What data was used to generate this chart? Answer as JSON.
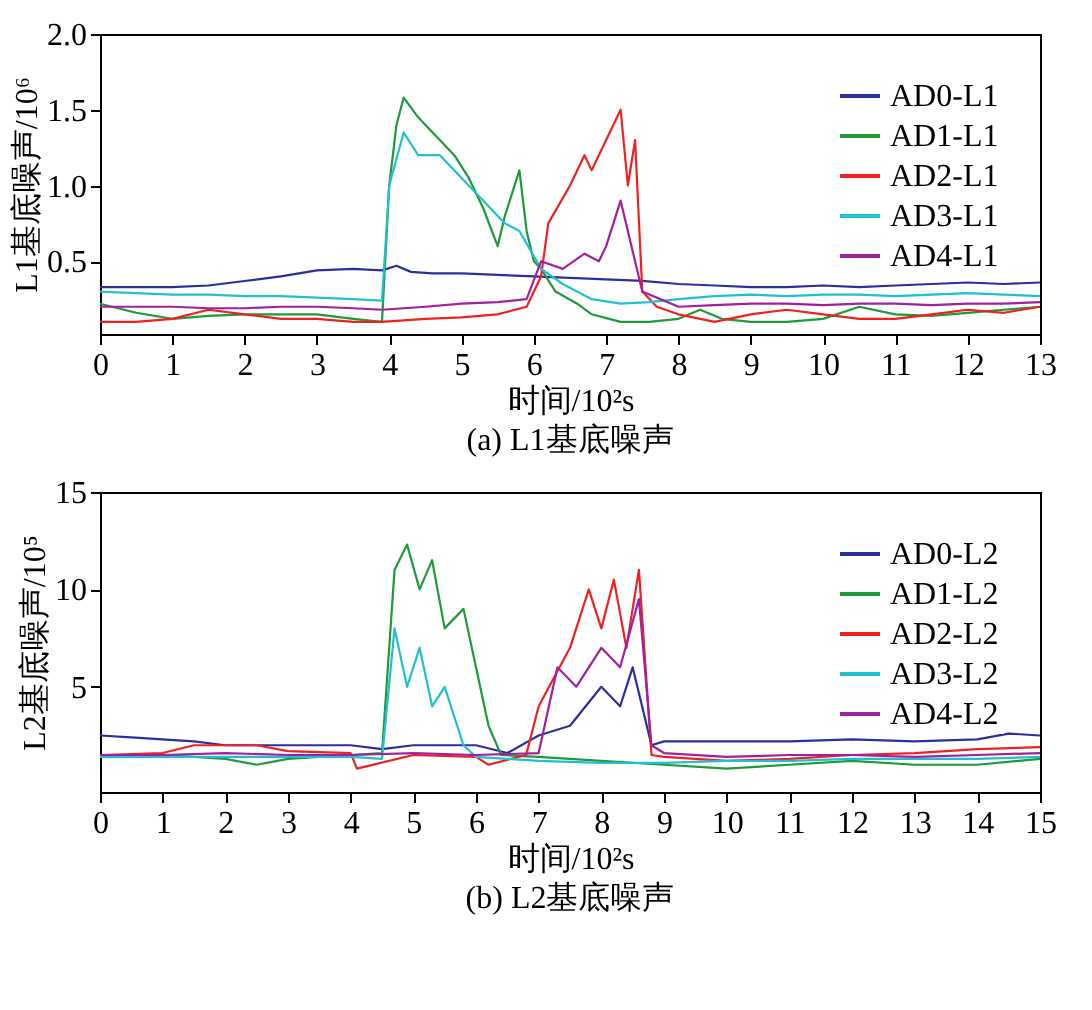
{
  "chart_data": [
    {
      "type": "line",
      "title": "(a) L1基底噪声",
      "xlabel": "时间/10²s",
      "ylabel": "L1基底噪声/10⁶",
      "xlim": [
        0,
        13
      ],
      "xticks": [
        0,
        1,
        2,
        3,
        4,
        5,
        6,
        7,
        8,
        9,
        10,
        11,
        12,
        13
      ],
      "ylim": [
        0.02,
        2.0
      ],
      "yticks": [
        {
          "value": 0.5,
          "label": "0.5"
        },
        {
          "value": 1,
          "label": "1.0"
        },
        {
          "value": 1.5,
          "label": "1.5"
        },
        {
          "value": 2,
          "label": "2.0"
        }
      ],
      "legend": "top right",
      "grid": false,
      "line_style": "solid",
      "marker": "none",
      "series": [
        {
          "name": "AD0-L1",
          "color": "#2b2f9e",
          "x": [
            0,
            0.5,
            1,
            1.5,
            2,
            2.5,
            3,
            3.5,
            3.9,
            4.1,
            4.3,
            4.6,
            5,
            5.5,
            6,
            6.5,
            7,
            7.5,
            8,
            8.5,
            9,
            9.5,
            10,
            10.5,
            11,
            11.5,
            12,
            12.5,
            13
          ],
          "values": [
            0.33,
            0.33,
            0.33,
            0.34,
            0.37,
            0.4,
            0.44,
            0.45,
            0.44,
            0.47,
            0.43,
            0.42,
            0.42,
            0.41,
            0.4,
            0.39,
            0.38,
            0.37,
            0.35,
            0.34,
            0.33,
            0.33,
            0.34,
            0.33,
            0.34,
            0.35,
            0.36,
            0.35,
            0.36
          ]
        },
        {
          "name": "AD1-L1",
          "color": "#1e9a3a",
          "x": [
            0,
            0.5,
            1,
            1.5,
            2,
            2.5,
            3,
            3.5,
            3.9,
            4.0,
            4.1,
            4.2,
            4.4,
            4.6,
            4.9,
            5.1,
            5.3,
            5.5,
            5.6,
            5.8,
            5.9,
            6.0,
            6.1,
            6.3,
            6.6,
            6.8,
            7.2,
            7.6,
            8,
            8.3,
            8.6,
            9,
            9.5,
            10,
            10.5,
            11,
            11.5,
            12,
            12.5,
            13
          ],
          "values": [
            0.22,
            0.16,
            0.12,
            0.14,
            0.15,
            0.15,
            0.15,
            0.12,
            0.1,
            1.0,
            1.4,
            1.58,
            1.45,
            1.35,
            1.2,
            1.05,
            0.85,
            0.6,
            0.8,
            1.1,
            0.7,
            0.5,
            0.45,
            0.3,
            0.22,
            0.15,
            0.1,
            0.1,
            0.12,
            0.18,
            0.12,
            0.1,
            0.1,
            0.12,
            0.2,
            0.15,
            0.14,
            0.16,
            0.18,
            0.2
          ]
        },
        {
          "name": "AD2-L1",
          "color": "#f02020",
          "x": [
            0,
            0.5,
            1,
            1.5,
            2,
            2.5,
            3,
            3.5,
            3.9,
            4.5,
            5,
            5.5,
            5.9,
            6.1,
            6.2,
            6.5,
            6.7,
            6.8,
            7.0,
            7.2,
            7.3,
            7.4,
            7.5,
            7.7,
            8,
            8.5,
            9,
            9.5,
            10,
            10.5,
            11,
            11.5,
            12,
            12.5,
            13
          ],
          "values": [
            0.1,
            0.1,
            0.12,
            0.18,
            0.15,
            0.12,
            0.12,
            0.1,
            0.1,
            0.12,
            0.13,
            0.15,
            0.2,
            0.4,
            0.75,
            1.0,
            1.2,
            1.1,
            1.3,
            1.5,
            1.0,
            1.3,
            0.3,
            0.2,
            0.15,
            0.1,
            0.15,
            0.18,
            0.15,
            0.12,
            0.12,
            0.15,
            0.18,
            0.16,
            0.2
          ]
        },
        {
          "name": "AD3-L1",
          "color": "#20c0d0",
          "x": [
            0,
            0.5,
            1,
            1.5,
            2,
            2.5,
            3,
            3.5,
            3.9,
            4.0,
            4.2,
            4.4,
            4.7,
            5.0,
            5.3,
            5.6,
            5.8,
            6.1,
            6.4,
            6.8,
            7.2,
            7.6,
            8,
            8.5,
            9,
            9.5,
            10,
            10.5,
            11,
            11.5,
            12,
            12.5,
            13
          ],
          "values": [
            0.3,
            0.29,
            0.28,
            0.28,
            0.27,
            0.27,
            0.26,
            0.25,
            0.24,
            1.0,
            1.35,
            1.2,
            1.2,
            1.05,
            0.9,
            0.75,
            0.7,
            0.45,
            0.35,
            0.25,
            0.22,
            0.23,
            0.25,
            0.27,
            0.28,
            0.27,
            0.28,
            0.28,
            0.27,
            0.28,
            0.29,
            0.28,
            0.27
          ]
        },
        {
          "name": "AD4-L1",
          "color": "#a020a0",
          "x": [
            0,
            0.5,
            1,
            1.5,
            2,
            2.5,
            3,
            3.5,
            3.9,
            4.5,
            5,
            5.5,
            5.9,
            6.1,
            6.4,
            6.7,
            6.9,
            7.0,
            7.2,
            7.4,
            7.5,
            8,
            8.5,
            9,
            9.5,
            10,
            10.5,
            11,
            11.5,
            12,
            12.5,
            13
          ],
          "values": [
            0.2,
            0.2,
            0.2,
            0.19,
            0.19,
            0.2,
            0.2,
            0.19,
            0.18,
            0.2,
            0.22,
            0.23,
            0.25,
            0.5,
            0.45,
            0.55,
            0.5,
            0.6,
            0.9,
            0.5,
            0.3,
            0.2,
            0.21,
            0.22,
            0.22,
            0.21,
            0.22,
            0.22,
            0.21,
            0.22,
            0.22,
            0.23
          ]
        }
      ]
    },
    {
      "type": "line",
      "title": "(b) L2基底噪声",
      "xlabel": "时间/10²s",
      "ylabel": "L2基底噪声/10⁵",
      "xlim": [
        0,
        15
      ],
      "xticks": [
        0,
        1,
        2,
        3,
        4,
        5,
        6,
        7,
        8,
        9,
        10,
        11,
        12,
        13,
        14,
        15
      ],
      "ylim": [
        -0.4,
        15
      ],
      "yticks": [
        5,
        10,
        15
      ],
      "legend": "top right",
      "grid": false,
      "line_style": "solid",
      "marker": "none",
      "series": [
        {
          "name": "AD0-L2",
          "color": "#2b2f9e",
          "x": [
            0,
            0.5,
            1,
            1.5,
            2,
            3,
            4,
            4.5,
            5,
            5.5,
            6,
            6.5,
            7,
            7.5,
            8,
            8.3,
            8.5,
            8.8,
            9,
            10,
            11,
            12,
            13,
            14,
            14.5,
            15
          ],
          "values": [
            2.5,
            2.4,
            2.3,
            2.2,
            2.0,
            2.0,
            2.0,
            1.8,
            2.0,
            2.0,
            2.0,
            1.6,
            2.5,
            3,
            5,
            4,
            6,
            2,
            2.2,
            2.2,
            2.2,
            2.3,
            2.2,
            2.3,
            2.6,
            2.5
          ]
        },
        {
          "name": "AD1-L2",
          "color": "#1e9a3a",
          "x": [
            0,
            1,
            2,
            2.5,
            3,
            4,
            4.5,
            4.7,
            4.9,
            5.1,
            5.3,
            5.5,
            5.8,
            6.0,
            6.2,
            6.4,
            7,
            8,
            9,
            10,
            11,
            12,
            13,
            14,
            15
          ],
          "values": [
            1.5,
            1.5,
            1.3,
            1.0,
            1.3,
            1.5,
            1.6,
            11,
            12.3,
            10,
            11.5,
            8,
            9,
            6,
            3,
            1.5,
            1.4,
            1.2,
            1.0,
            0.8,
            1.0,
            1.2,
            1.0,
            1.0,
            1.3
          ]
        },
        {
          "name": "AD2-L2",
          "color": "#f02020",
          "x": [
            0,
            1,
            1.5,
            2.5,
            3,
            4,
            4.1,
            5,
            6,
            6.2,
            6.8,
            7.0,
            7.5,
            7.8,
            8.0,
            8.2,
            8.4,
            8.6,
            8.8,
            9,
            10,
            11,
            12,
            13,
            14,
            15
          ],
          "values": [
            1.5,
            1.6,
            2.0,
            2.0,
            1.7,
            1.6,
            0.8,
            1.5,
            1.4,
            1.0,
            1.5,
            4,
            7,
            10,
            8,
            10.5,
            7,
            11,
            1.5,
            1.4,
            1.2,
            1.3,
            1.5,
            1.6,
            1.8,
            1.9
          ]
        },
        {
          "name": "AD3-L2",
          "color": "#20c0d0",
          "x": [
            0,
            1,
            2,
            3,
            4,
            4.5,
            4.7,
            4.9,
            5.1,
            5.3,
            5.5,
            5.8,
            6,
            7,
            8,
            9,
            10,
            11,
            12,
            13,
            14,
            15
          ],
          "values": [
            1.4,
            1.4,
            1.4,
            1.4,
            1.4,
            1.3,
            8,
            5,
            7,
            4,
            5,
            2,
            1.4,
            1.2,
            1.1,
            1.1,
            1.2,
            1.2,
            1.3,
            1.3,
            1.3,
            1.4
          ]
        },
        {
          "name": "AD4-L2",
          "color": "#a020a0",
          "x": [
            0,
            1,
            2,
            3,
            4,
            5,
            6,
            7,
            7.3,
            7.6,
            8.0,
            8.3,
            8.6,
            8.8,
            9,
            10,
            11,
            12,
            13,
            14,
            15
          ],
          "values": [
            1.5,
            1.5,
            1.6,
            1.5,
            1.5,
            1.6,
            1.5,
            1.6,
            6,
            5,
            7,
            6,
            9.5,
            2,
            1.6,
            1.4,
            1.5,
            1.5,
            1.4,
            1.5,
            1.6
          ]
        }
      ]
    }
  ]
}
